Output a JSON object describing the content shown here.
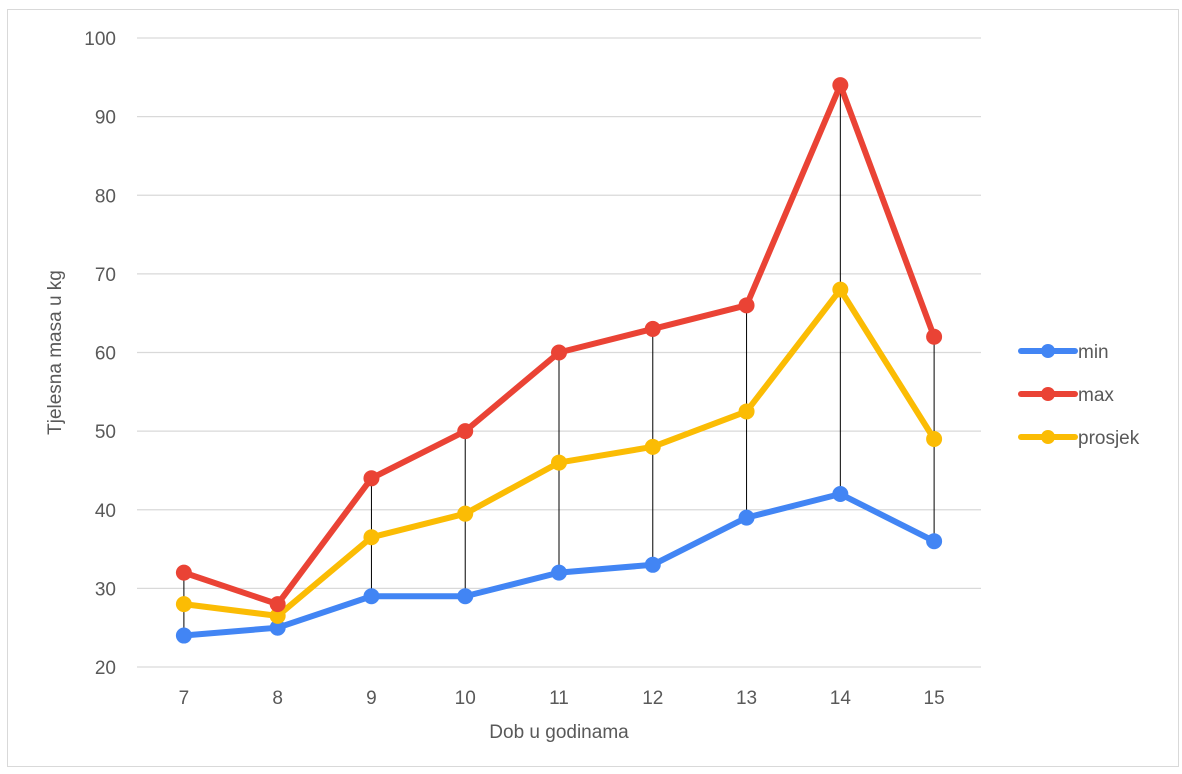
{
  "chart_data": {
    "type": "line",
    "title": "",
    "xlabel": "Dob u godinama",
    "ylabel": "Tjelesna masa u kg",
    "categories": [
      "7",
      "8",
      "9",
      "10",
      "11",
      "12",
      "13",
      "14",
      "15"
    ],
    "ylim": [
      20,
      100
    ],
    "yticks": [
      20,
      30,
      40,
      50,
      60,
      70,
      80,
      90,
      100
    ],
    "grid": true,
    "legend_position": "right",
    "high_low_lines": true,
    "series": [
      {
        "name": "min",
        "color": "#4285f4",
        "values": [
          24,
          25,
          29,
          29,
          32,
          33,
          39,
          42,
          36
        ]
      },
      {
        "name": "max",
        "color": "#ea4335",
        "values": [
          32,
          28,
          44,
          50,
          60,
          63,
          66,
          94,
          62
        ]
      },
      {
        "name": "prosjek",
        "color": "#fbbc04",
        "values": [
          28,
          26.5,
          36.5,
          39.5,
          46,
          48,
          52.5,
          68,
          49
        ]
      }
    ]
  }
}
